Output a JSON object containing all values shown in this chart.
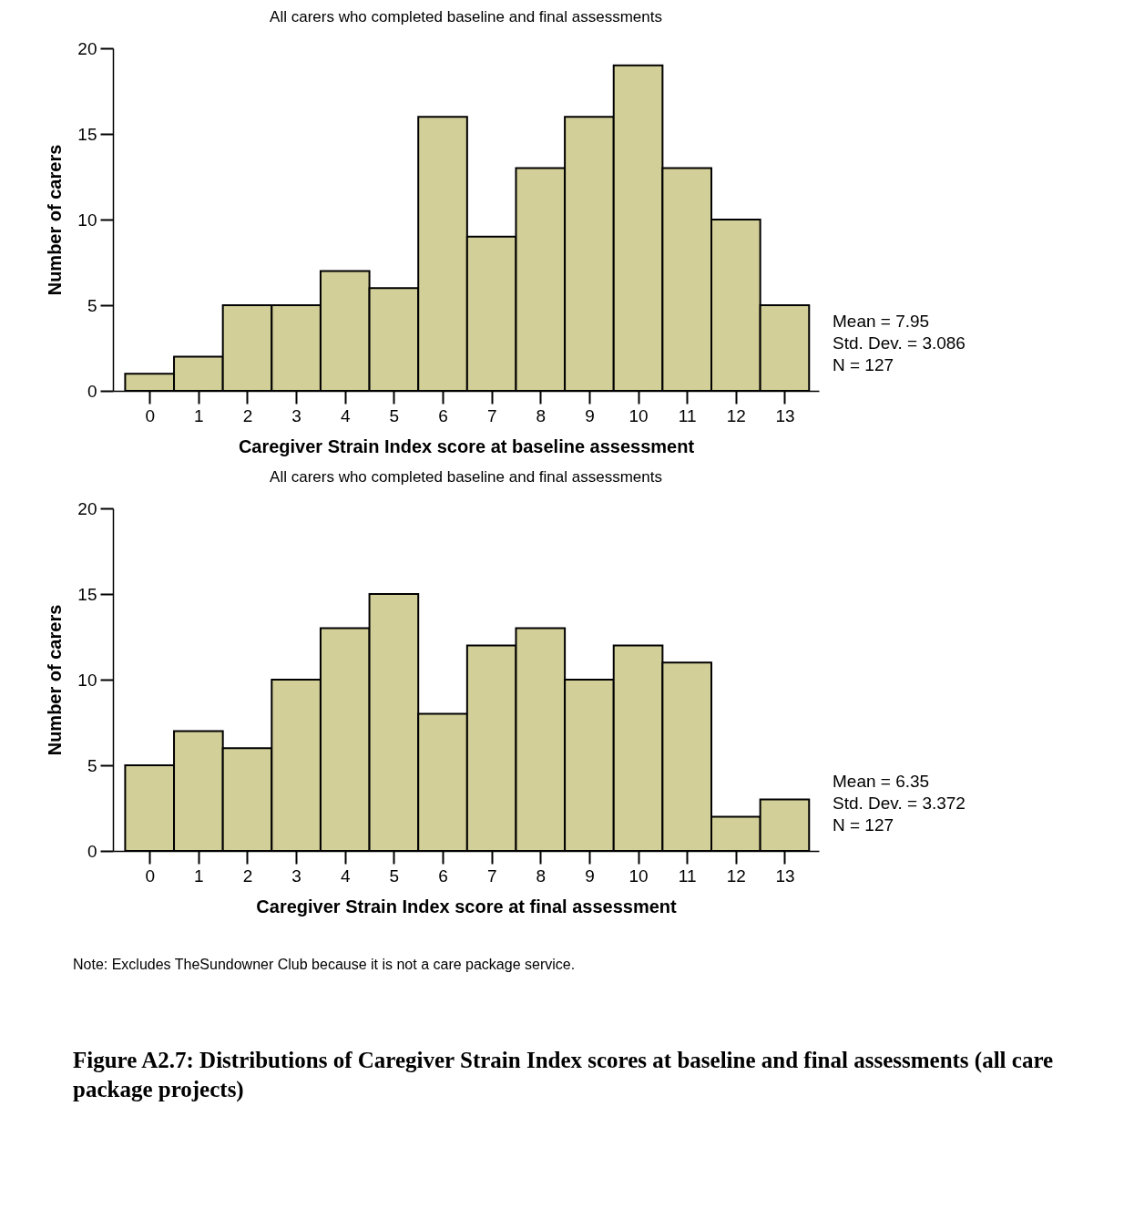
{
  "chart_data": [
    {
      "type": "histogram",
      "title": "All carers who completed baseline and final assessments",
      "xlabel": "Caregiver Strain Index score at baseline assessment",
      "ylabel": "Number of carers",
      "bins": [
        -0.5,
        0.5,
        1.5,
        2.5,
        3.5,
        4.5,
        5.5,
        6.5,
        7.5,
        8.5,
        9.5,
        10.5,
        11.5,
        12.5,
        13.5
      ],
      "values": [
        1,
        2,
        5,
        5,
        7,
        6,
        16,
        9,
        13,
        16,
        19,
        13,
        10,
        5
      ],
      "color": "#d3cf98",
      "xlim": [
        -0.75,
        13.7
      ],
      "xticks": [
        0,
        1,
        2,
        3,
        4,
        5,
        6,
        7,
        8,
        9,
        10,
        11,
        12,
        13
      ],
      "ylim": [
        0,
        20
      ],
      "yticks": [
        0,
        5,
        10,
        15,
        20
      ],
      "grid": false,
      "annotations": [
        "Mean = 7.95",
        "Std. Dev. = 3.086",
        "N = 127"
      ]
    },
    {
      "type": "histogram",
      "title": "All carers who completed baseline and final assessments",
      "xlabel": "Caregiver Strain Index score at final assessment",
      "ylabel": "Number of carers",
      "bins": [
        -0.5,
        0.5,
        1.5,
        2.5,
        3.5,
        4.5,
        5.5,
        6.5,
        7.5,
        8.5,
        9.5,
        10.5,
        11.5,
        12.5,
        13.5
      ],
      "values": [
        5,
        7,
        6,
        10,
        13,
        15,
        8,
        12,
        13,
        10,
        12,
        11,
        2,
        3
      ],
      "color": "#d3cf98",
      "xlim": [
        -0.75,
        13.7
      ],
      "xticks": [
        0,
        1,
        2,
        3,
        4,
        5,
        6,
        7,
        8,
        9,
        10,
        11,
        12,
        13
      ],
      "ylim": [
        0,
        20
      ],
      "yticks": [
        0,
        5,
        10,
        15,
        20
      ],
      "grid": false,
      "annotations": [
        "Mean = 6.35",
        "Std. Dev. = 3.372",
        "N = 127",
        "Note: Excludes TheSundowner Club because it is not a care package service.",
        "Figure A2.7: Distributions of Caregiver Strain Index scores at baseline and final assessments (all care package projects)"
      ]
    }
  ]
}
